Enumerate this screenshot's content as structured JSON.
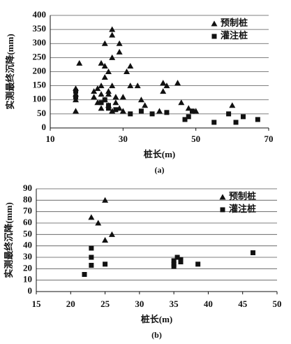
{
  "chart_data": [
    {
      "type": "scatter",
      "caption": "(a)",
      "x_label": "桩长(m)",
      "y_label": "实测最终沉降(mm)",
      "xlim": [
        10,
        70
      ],
      "ylim": [
        0,
        400
      ],
      "xticks": [
        10,
        30,
        50,
        70
      ],
      "yticks": [
        0,
        50,
        100,
        150,
        200,
        250,
        300,
        350,
        400
      ],
      "grid": "y",
      "legend": "upper right",
      "series": [
        {
          "name": "预制桩",
          "color": "#111111",
          "marker": "triangle",
          "x": [
            17,
            17,
            17,
            18,
            17,
            22,
            22,
            23,
            23,
            24,
            24,
            24,
            25,
            25,
            25,
            25,
            26,
            26,
            26,
            27,
            27,
            27,
            27,
            28,
            28,
            29,
            29,
            29,
            30,
            30,
            31,
            32,
            32,
            34,
            35,
            36,
            40,
            41,
            41,
            42,
            45,
            46,
            48,
            50,
            60,
            27,
            24,
            26
          ],
          "values": [
            120,
            140,
            60,
            230,
            100,
            130,
            110,
            90,
            140,
            150,
            230,
            120,
            300,
            220,
            180,
            100,
            80,
            130,
            200,
            350,
            330,
            250,
            150,
            110,
            90,
            300,
            270,
            70,
            110,
            60,
            200,
            220,
            150,
            150,
            100,
            80,
            60,
            130,
            160,
            150,
            160,
            90,
            70,
            60,
            80,
            60,
            70,
            120
          ]
        },
        {
          "name": "灌注桩",
          "color": "#111111",
          "marker": "square",
          "x": [
            17,
            17,
            24,
            25,
            26,
            32,
            35,
            38,
            42,
            47,
            48,
            49,
            55,
            59,
            61,
            63,
            67,
            26,
            28
          ],
          "values": [
            110,
            130,
            90,
            100,
            70,
            50,
            60,
            50,
            55,
            30,
            40,
            60,
            20,
            50,
            20,
            40,
            30,
            80,
            65
          ]
        }
      ]
    },
    {
      "type": "scatter",
      "caption": "(b)",
      "x_label": "桩长(m)",
      "y_label": "实测最终沉降(mm)",
      "xlim": [
        15,
        50
      ],
      "ylim": [
        0,
        90
      ],
      "xticks": [
        15,
        20,
        25,
        30,
        35,
        40,
        45,
        50
      ],
      "yticks": [
        0,
        10,
        20,
        30,
        40,
        50,
        60,
        70,
        80,
        90
      ],
      "grid": "y",
      "legend": "upper right",
      "series": [
        {
          "name": "预制桩",
          "color": "#111111",
          "marker": "triangle",
          "x": [
            23,
            24,
            25,
            25,
            26
          ],
          "values": [
            65,
            60,
            80,
            45,
            50
          ]
        },
        {
          "name": "灌注桩",
          "color": "#111111",
          "marker": "square",
          "x": [
            22,
            23,
            23,
            23,
            25,
            35,
            35,
            35,
            36,
            36,
            35.5,
            38.5,
            46.5
          ],
          "values": [
            15,
            38,
            30,
            23,
            24,
            27,
            24,
            22,
            28,
            26,
            30,
            24,
            34
          ]
        }
      ]
    }
  ]
}
